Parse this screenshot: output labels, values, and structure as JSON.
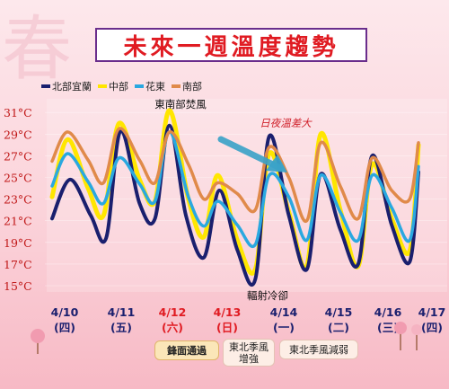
{
  "title": "未來一週溫度趨勢",
  "background_glyph": "春",
  "colors": {
    "yilan": "#1a1f6e",
    "central": "#ffe600",
    "east": "#2aa8e0",
    "south": "#e08a4a",
    "axis_label": "#c01818",
    "weekend": "#e01b22",
    "weekday": "#1a1f6e"
  },
  "chart_data": {
    "type": "line",
    "ylim": [
      15,
      32
    ],
    "yticks": [
      "31°C",
      "29°C",
      "27°C",
      "25°C",
      "23°C",
      "21°C",
      "19°C",
      "17°C",
      "15°C"
    ],
    "ytick_values": [
      31,
      29,
      27,
      25,
      23,
      21,
      19,
      17,
      15
    ],
    "x": [
      "4/10",
      "4/11",
      "4/12",
      "4/13",
      "4/14",
      "4/15",
      "4/16",
      "4/17"
    ],
    "x_days": [
      "(四)",
      "(五)",
      "(六)",
      "(日)",
      "(一)",
      "(二)",
      "(三)",
      "(四)"
    ],
    "x_weekend": [
      false,
      false,
      true,
      true,
      false,
      false,
      false,
      false
    ],
    "series": [
      {
        "name": "北部宜蘭",
        "color_key": "yilan",
        "points": [
          [
            0,
            21.2
          ],
          [
            0.35,
            24.8
          ],
          [
            0.75,
            21.5
          ],
          [
            1.05,
            19.4
          ],
          [
            1.33,
            29.3
          ],
          [
            1.7,
            22.6
          ],
          [
            2.0,
            21.2
          ],
          [
            2.28,
            29.8
          ],
          [
            2.6,
            21.5
          ],
          [
            2.95,
            17.6
          ],
          [
            3.25,
            23.8
          ],
          [
            3.6,
            18.3
          ],
          [
            3.95,
            15.6
          ],
          [
            4.22,
            28.8
          ],
          [
            4.6,
            21.5
          ],
          [
            4.95,
            16.5
          ],
          [
            5.22,
            25.3
          ],
          [
            5.6,
            20.2
          ],
          [
            5.95,
            17.0
          ],
          [
            6.22,
            27.0
          ],
          [
            6.6,
            20.6
          ],
          [
            6.95,
            17.2
          ],
          [
            7.12,
            25.5
          ]
        ]
      },
      {
        "name": "中部",
        "color_key": "central",
        "points": [
          [
            0,
            23.2
          ],
          [
            0.3,
            28.5
          ],
          [
            0.7,
            24.0
          ],
          [
            1.0,
            21.5
          ],
          [
            1.3,
            30.0
          ],
          [
            1.7,
            24.8
          ],
          [
            2.0,
            22.8
          ],
          [
            2.28,
            31.2
          ],
          [
            2.65,
            23.0
          ],
          [
            2.95,
            19.5
          ],
          [
            3.22,
            25.2
          ],
          [
            3.6,
            19.2
          ],
          [
            3.95,
            16.5
          ],
          [
            4.22,
            27.2
          ],
          [
            4.6,
            21.8
          ],
          [
            4.95,
            16.8
          ],
          [
            5.22,
            29.0
          ],
          [
            5.6,
            22.0
          ],
          [
            5.95,
            16.8
          ],
          [
            6.22,
            26.2
          ],
          [
            6.6,
            21.2
          ],
          [
            6.95,
            18.2
          ],
          [
            7.12,
            28.0
          ]
        ]
      },
      {
        "name": "花東",
        "color_key": "east",
        "points": [
          [
            0,
            24.2
          ],
          [
            0.3,
            27.2
          ],
          [
            0.7,
            24.6
          ],
          [
            1.0,
            22.6
          ],
          [
            1.3,
            26.8
          ],
          [
            1.7,
            24.4
          ],
          [
            2.0,
            22.8
          ],
          [
            2.28,
            29.2
          ],
          [
            2.65,
            23.2
          ],
          [
            2.95,
            20.5
          ],
          [
            3.22,
            22.8
          ],
          [
            3.6,
            20.6
          ],
          [
            3.95,
            18.8
          ],
          [
            4.22,
            25.2
          ],
          [
            4.6,
            23.2
          ],
          [
            4.95,
            19.2
          ],
          [
            5.22,
            25.2
          ],
          [
            5.6,
            21.8
          ],
          [
            5.95,
            19.2
          ],
          [
            6.22,
            25.2
          ],
          [
            6.6,
            22.2
          ],
          [
            6.95,
            19.2
          ],
          [
            7.12,
            26.0
          ]
        ]
      },
      {
        "name": "南部",
        "color_key": "south",
        "points": [
          [
            0,
            26.5
          ],
          [
            0.3,
            29.2
          ],
          [
            0.7,
            26.6
          ],
          [
            1.0,
            24.5
          ],
          [
            1.3,
            29.5
          ],
          [
            1.7,
            26.6
          ],
          [
            2.0,
            24.5
          ],
          [
            2.28,
            29.2
          ],
          [
            2.65,
            26.2
          ],
          [
            2.95,
            23.0
          ],
          [
            3.22,
            24.5
          ],
          [
            3.6,
            23.5
          ],
          [
            3.95,
            22.0
          ],
          [
            4.22,
            27.8
          ],
          [
            4.6,
            25.0
          ],
          [
            4.95,
            21.0
          ],
          [
            5.22,
            28.2
          ],
          [
            5.6,
            24.2
          ],
          [
            5.95,
            21.2
          ],
          [
            6.22,
            26.8
          ],
          [
            6.6,
            23.8
          ],
          [
            6.95,
            23.0
          ],
          [
            7.12,
            28.2
          ]
        ]
      }
    ]
  },
  "annotations": {
    "top": "東南部焚風",
    "bottom": "輻射冷卻",
    "diurnal": "日夜溫差大"
  },
  "events": [
    {
      "label": "鋒面通過",
      "style": "bold"
    },
    {
      "label": "東北季風\n增強",
      "style": "light"
    },
    {
      "label": "東北季風減弱",
      "style": "light"
    }
  ]
}
